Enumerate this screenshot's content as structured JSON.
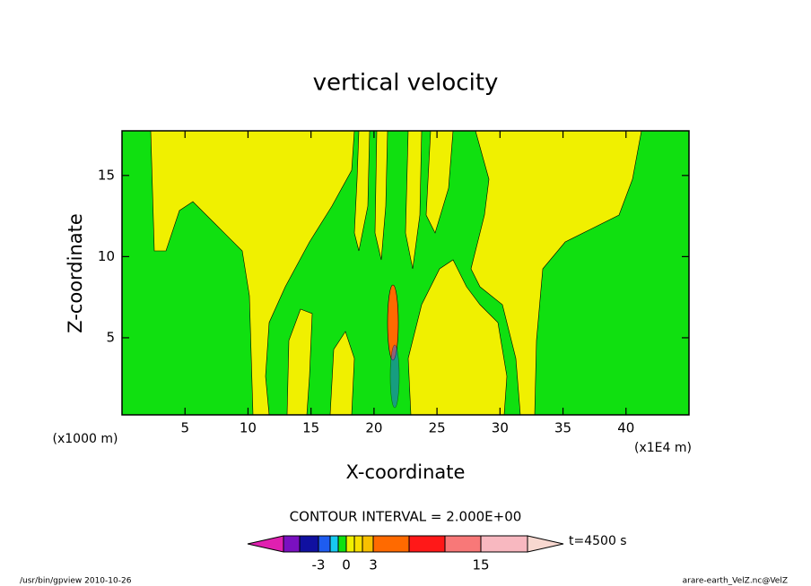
{
  "chart_data": {
    "type": "contour",
    "title": "vertical velocity",
    "x_label": "X-coordinate",
    "y_label": "Z-coordinate",
    "x_unit_label": "(x1000 m)",
    "x_unit_label_2": "(x1E4 m)",
    "xlim": [
      0,
      45
    ],
    "xticks": [
      5,
      10,
      15,
      20,
      25,
      30,
      35,
      40
    ],
    "ylim": [
      0.25,
      17.75
    ],
    "yticks": [
      5,
      10,
      15
    ],
    "contour_interval_label": "CONTOUR INTERVAL = 2.000E+00",
    "time_label": "t=4500 s",
    "footer_left": "/usr/bin/gpview  2010-10-26",
    "footer_right": "arare-earth_VelZ.nc@VelZ",
    "colorbar": {
      "levels": [
        -7,
        -5,
        -3,
        -2,
        -1,
        0,
        1,
        2,
        3,
        7,
        11,
        15,
        19
      ],
      "colors": [
        "#e020b0",
        "#7a10c0",
        "#1010a0",
        "#1e5cf0",
        "#18c8f0",
        "#10e010",
        "#f0f000",
        "#f8e000",
        "#f8c000",
        "#ff6a00",
        "#ff1818",
        "#f87878",
        "#f8b8c0",
        "#f8d8d0"
      ],
      "ticks": [
        -3,
        0,
        3,
        15
      ]
    }
  }
}
